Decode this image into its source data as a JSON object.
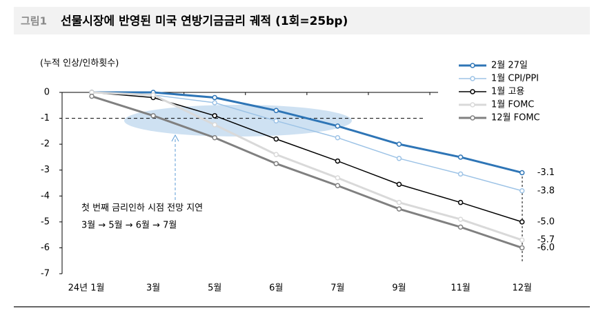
{
  "chart_data": {
    "type": "line",
    "figure_label": "그림1",
    "title": "선물시장에 반영된 미국 연방기금금리 궤적 (1회=25bp)",
    "y_label": "(누적 인상/인하횟수)",
    "categories": [
      "24년 1월",
      "3월",
      "5월",
      "6월",
      "7월",
      "9월",
      "11월",
      "12월"
    ],
    "series": [
      {
        "name": "2월 27일",
        "color": "#2e75b6",
        "width": 3,
        "values": [
          0,
          0,
          -0.2,
          -0.7,
          -1.3,
          -2.0,
          -2.5,
          -3.1
        ],
        "value_labels": [
          null,
          null,
          null,
          null,
          null,
          null,
          null,
          "-3.1"
        ]
      },
      {
        "name": "1월 CPI/PPI",
        "color": "#9dc3e6",
        "width": 1.5,
        "values": [
          0,
          -0.1,
          -0.4,
          -1.1,
          -1.75,
          -2.55,
          -3.15,
          -3.8
        ],
        "value_labels": [
          null,
          null,
          null,
          null,
          null,
          null,
          null,
          "-3.8"
        ]
      },
      {
        "name": "1월 고용",
        "color": "#000000",
        "width": 1.5,
        "values": [
          0,
          -0.2,
          -0.9,
          -1.8,
          -2.65,
          -3.55,
          -4.25,
          -5
        ],
        "value_labels": [
          null,
          null,
          null,
          null,
          null,
          null,
          null,
          "-5.0"
        ]
      },
      {
        "name": "1월 FOMC",
        "color": "#d9d9d9",
        "width": 3,
        "values": [
          0,
          -0.1,
          -1.25,
          -2.4,
          -3.3,
          -4.25,
          -4.9,
          -5.7
        ],
        "value_labels": [
          null,
          null,
          null,
          null,
          null,
          null,
          null,
          "-5.7"
        ]
      },
      {
        "name": "12월 FOMC",
        "color": "#808080",
        "width": 3,
        "values": [
          -0.15,
          -0.9,
          -1.75,
          -2.75,
          -3.6,
          -4.5,
          -5.2,
          -6
        ],
        "value_labels": [
          null,
          null,
          null,
          null,
          null,
          null,
          null,
          "-6.0"
        ]
      }
    ],
    "ylim": [
      -7,
      0
    ],
    "yticks": [
      0,
      -1,
      -2,
      -3,
      -4,
      -5,
      -6,
      -7
    ],
    "ref_line": -1,
    "annotation": [
      "첫 번째 금리인하 시점 전망 지연",
      "3월 → 5월 → 6월 → 7월"
    ]
  }
}
